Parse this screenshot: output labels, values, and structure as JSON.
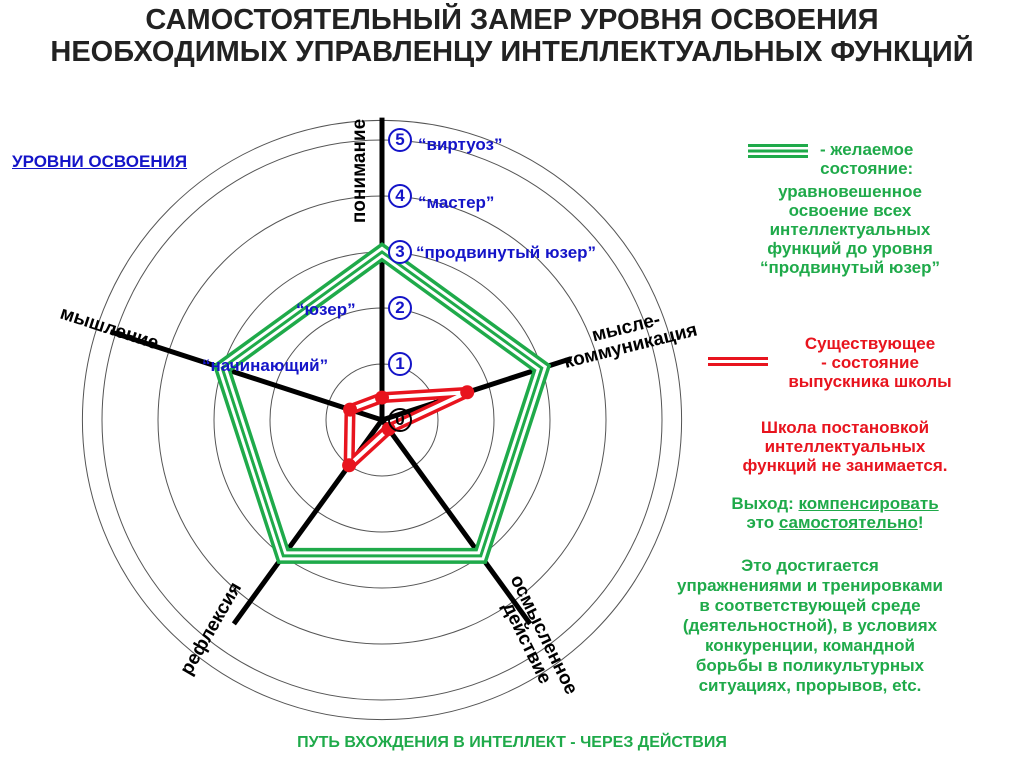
{
  "title": [
    "САМОСТОЯТЕЛЬНЫЙ ЗАМЕР УРОВНЯ ОСВОЕНИЯ",
    "НЕОБХОДИМЫХ УПРАВЛЕНЦУ ИНТЕЛЛЕКТУАЛЬНЫХ ФУНКЦИЙ"
  ],
  "levels_heading": "УРОВНИ ОСВОЕНИЯ",
  "levels": [
    {
      "num": "0",
      "label": ""
    },
    {
      "num": "1",
      "label": "“начинающий”"
    },
    {
      "num": "2",
      "label": "“юзер”"
    },
    {
      "num": "3",
      "label": "“продвинутый юзер”"
    },
    {
      "num": "4",
      "label": "“мастер”"
    },
    {
      "num": "5",
      "label": "“виртуоз”"
    }
  ],
  "axes": [
    "понимание",
    "мысле-коммуникация",
    "осмысленное действие",
    "рефлексия",
    "мышление"
  ],
  "axis_label_lines": {
    "mysle": [
      "мысле-",
      "коммуникация"
    ],
    "osmysl": [
      "осмысленное",
      "действие"
    ]
  },
  "series": [
    {
      "key": "desired",
      "color": "#1faa4a",
      "values": [
        3,
        3,
        3,
        3,
        3
      ]
    },
    {
      "key": "current",
      "color": "#e8141e",
      "values": [
        0.4,
        1.6,
        0.2,
        1.0,
        0.6
      ]
    }
  ],
  "legend": {
    "desired": [
      "- желаемое",
      "состояние:",
      "уравновешенное",
      "освоение всех",
      "интеллектуальных",
      "функций до уровня",
      "“продвинутый юзер”"
    ],
    "current": [
      "Существующее",
      "-   состояние",
      "выпускника школы"
    ]
  },
  "notes": {
    "school": [
      "Школа постановкой",
      "интеллектуальных",
      "функций не занимается."
    ],
    "exit_prefix": "Выход: ",
    "exit_link": "компенсировать",
    "exit_line2_prefix": "это ",
    "exit_link2": "самостоятельно",
    "exit_suffix": "!",
    "achieve": [
      "Это достигается",
      "упражнениями и тренировками",
      "в соответствующей среде",
      "(деятельностной), в условиях",
      "конкуренции, командной",
      "борьбы в поликультурных",
      "ситуациях, прорывов, etc."
    ]
  },
  "footer": "ПУТЬ ВХОЖДЕНИЯ В ИНТЕЛЛЕКТ - ЧЕРЕЗ ДЕЙСТВИЯ"
}
